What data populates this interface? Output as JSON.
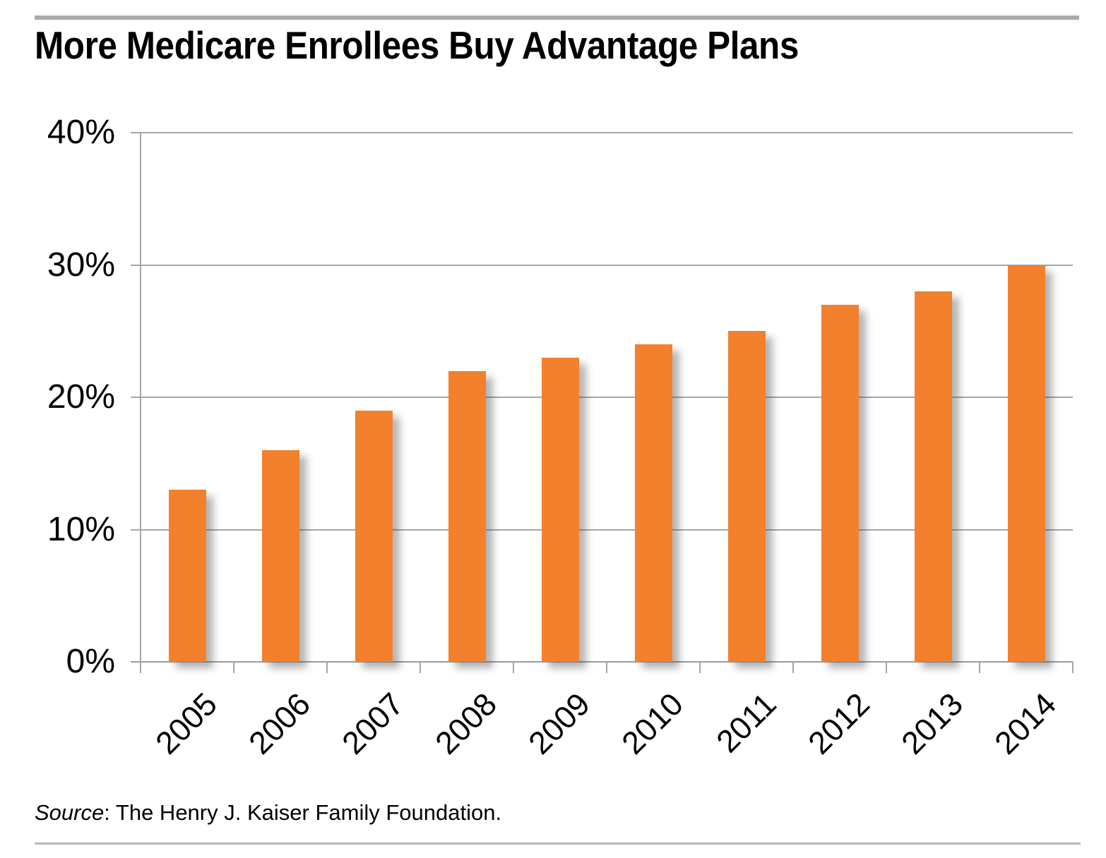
{
  "page": {
    "source_note": {
      "prefix": "Source",
      "rest": ": The Henry J. Kaiser Family Foundation."
    }
  },
  "chart_data": {
    "type": "bar",
    "title": "More Medicare Enrollees Buy Advantage Plans",
    "categories": [
      "2005",
      "2006",
      "2007",
      "2008",
      "2009",
      "2010",
      "2011",
      "2012",
      "2013",
      "2014"
    ],
    "values": [
      13,
      16,
      19,
      22,
      23,
      24,
      25,
      27,
      28,
      30
    ],
    "unit": "percent of Medicare enrollees",
    "xlabel": "",
    "ylabel": "",
    "ylim": [
      0,
      40
    ],
    "yticks": [
      0,
      10,
      20,
      30,
      40
    ],
    "ytick_labels": [
      "0%",
      "10%",
      "20%",
      "30%",
      "40%"
    ],
    "grid": true,
    "legend": null,
    "source": "Source: The Henry J. Kaiser Family Foundation."
  },
  "colors": {
    "bar": "#F2802C",
    "gridline": "#A4A6A8",
    "axis": "#9A9C9E",
    "top_rule": "#A8AAAD",
    "bottom_rule": "#B6B8BA",
    "text": "#000000"
  }
}
